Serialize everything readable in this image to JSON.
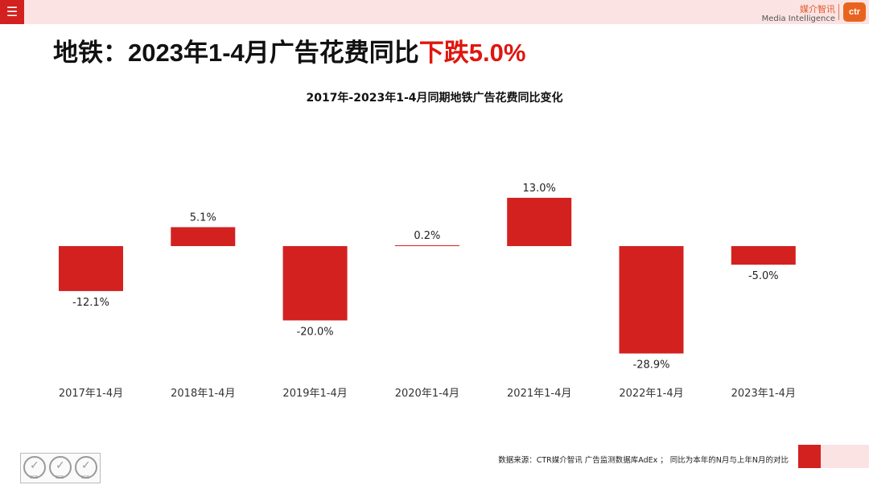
{
  "header": {
    "brand_cn": "媒介智讯",
    "brand_en": "Media Intelligence",
    "logo_text": "ctr"
  },
  "headline": {
    "prefix": "地铁：2023年1-4月广告花费同比",
    "highlight": "下跌5.0%"
  },
  "colors": {
    "bar": "#d32120",
    "highlight": "#e0160f",
    "band": "#fbe3e3"
  },
  "chart_data": {
    "type": "bar",
    "title": "2017年-2023年1-4月同期地铁广告花费同比变化",
    "categories": [
      "2017年1-4月",
      "2018年1-4月",
      "2019年1-4月",
      "2020年1-4月",
      "2021年1-4月",
      "2022年1-4月",
      "2023年1-4月"
    ],
    "values": [
      -12.1,
      5.1,
      -20.0,
      0.2,
      13.0,
      -28.9,
      -5.0
    ],
    "labels": [
      "-12.1%",
      "5.1%",
      "-20.0%",
      "0.2%",
      "13.0%",
      "-28.9%",
      "-5.0%"
    ],
    "unit": "%",
    "grid": false,
    "legend": "none"
  },
  "footer": {
    "source": "数据来源：CTR媒介智讯 广告监测数据库AdEx ；  同比为本年的N月与上年N月的对比",
    "cert_text": "SGS"
  }
}
